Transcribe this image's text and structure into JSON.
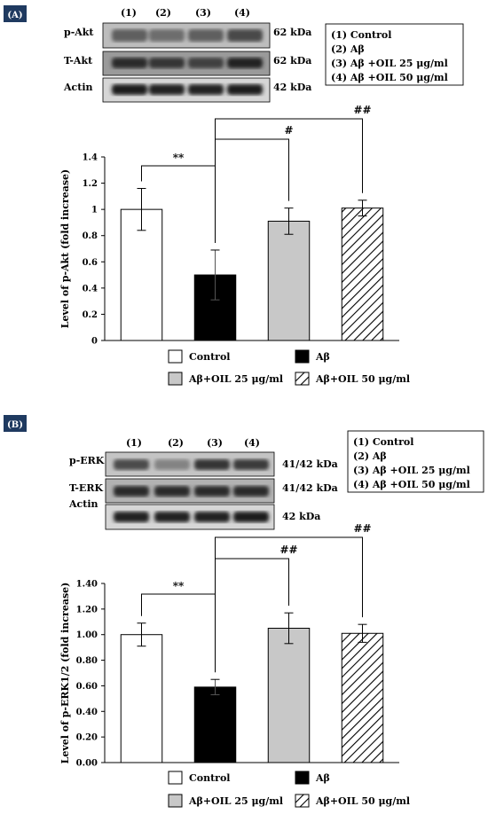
{
  "panels": [
    {
      "id": "A",
      "label": "(A)",
      "lanes": [
        "(1)",
        "(2)",
        "(3)",
        "(4)"
      ],
      "blots": [
        {
          "label": "p-Akt",
          "kda": "62 kDa",
          "intensity": [
            0.62,
            0.55,
            0.62,
            0.72
          ]
        },
        {
          "label": "T-Akt",
          "kda": "62 kDa",
          "intensity": [
            0.85,
            0.8,
            0.75,
            0.88
          ]
        },
        {
          "label": "Actin",
          "kda": "42 kDa",
          "intensity": [
            0.92,
            0.9,
            0.9,
            0.92
          ]
        }
      ],
      "groups": [
        "(1)  Control",
        "(2)  Aβ",
        "(3)  Aβ +OIL 25 μg/ml",
        "(4)  Aβ +OIL 50 μg/ml"
      ]
    },
    {
      "id": "B",
      "label": "(B)",
      "lanes": [
        "(1)",
        "(2)",
        "(3)",
        "(4)"
      ],
      "blots": [
        {
          "label": "p-ERK",
          "kda": "41/42 kDa",
          "intensity": [
            0.7,
            0.45,
            0.8,
            0.78
          ]
        },
        {
          "label": "T-ERK",
          "kda": "41/42 kDa",
          "intensity": [
            0.85,
            0.85,
            0.85,
            0.85
          ]
        },
        {
          "label": "Actin",
          "kda": "42 kDa",
          "intensity": [
            0.9,
            0.88,
            0.9,
            0.92
          ]
        }
      ],
      "groups": [
        "(1)  Control",
        "(2)  Aβ",
        "(3)  Aβ +OIL 25 μg/ml",
        "(4)  Aβ +OIL 50 μg/ml"
      ]
    }
  ],
  "legend": [
    "Control",
    "Aβ",
    "Aβ+OIL 25 μg/ml",
    "Aβ+OIL 50 μg/ml"
  ],
  "chart_data": [
    {
      "type": "bar",
      "panel": "A",
      "categories": [
        "Control",
        "Aβ",
        "Aβ+OIL 25 μg/ml",
        "Aβ+OIL 50 μg/ml"
      ],
      "values": [
        1.0,
        0.5,
        0.91,
        1.01
      ],
      "errors": [
        0.16,
        0.19,
        0.1,
        0.06
      ],
      "ylabel": "Level of p-Akt (fold increase)",
      "ylim": [
        0,
        1.4
      ],
      "yticks": [
        "0",
        "0.2",
        "0.4",
        "0.6",
        "0.8",
        "1",
        "1.2",
        "1.4"
      ],
      "significance": [
        "**",
        "#",
        "##"
      ],
      "fills": [
        "#ffffff",
        "#000000",
        "#c8c8c8",
        "hatch"
      ]
    },
    {
      "type": "bar",
      "panel": "B",
      "categories": [
        "Control",
        "Aβ",
        "Aβ+OIL 25 μg/ml",
        "Aβ+OIL 50 μg/ml"
      ],
      "values": [
        1.0,
        0.59,
        1.05,
        1.01
      ],
      "errors": [
        0.09,
        0.06,
        0.12,
        0.07
      ],
      "ylabel": "Level of p-ERK1/2 (fold increase)",
      "ylim": [
        0,
        1.4
      ],
      "yticks": [
        "0.00",
        "0.20",
        "0.40",
        "0.60",
        "0.80",
        "1.00",
        "1.20",
        "1.40"
      ],
      "significance": [
        "**",
        "##",
        "##"
      ],
      "fills": [
        "#ffffff",
        "#000000",
        "#c8c8c8",
        "hatch"
      ]
    }
  ]
}
